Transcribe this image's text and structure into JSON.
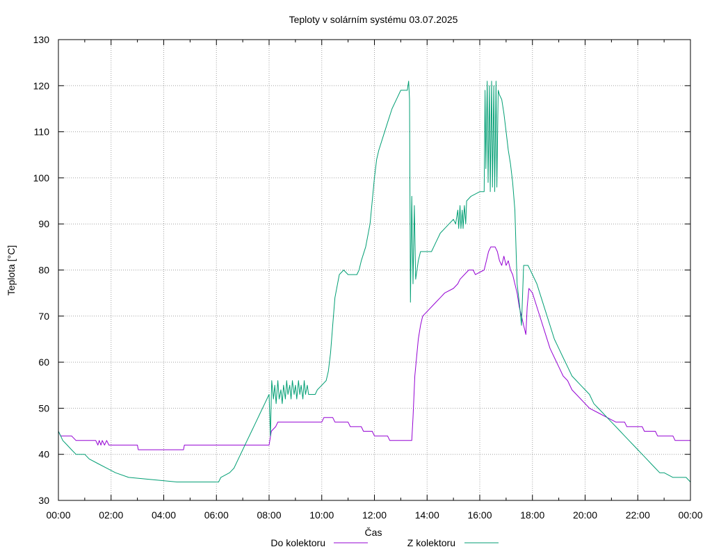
{
  "chart_data": {
    "type": "line",
    "title": "Teploty v solárním systému 03.07.2025",
    "xlabel": "Čas",
    "ylabel": "Teplota [°C]",
    "xlim": [
      "00:00",
      "24:00"
    ],
    "ylim": [
      30,
      130
    ],
    "x_ticks": [
      "00:00",
      "02:00",
      "04:00",
      "06:00",
      "08:00",
      "10:00",
      "12:00",
      "14:00",
      "16:00",
      "18:00",
      "20:00",
      "22:00",
      "00:00"
    ],
    "y_ticks": [
      30,
      40,
      50,
      60,
      70,
      80,
      90,
      100,
      110,
      120,
      130
    ],
    "grid": true,
    "legend_position": "bottom",
    "series": [
      {
        "name": "Do kolektoru",
        "color": "#9400d3",
        "points": [
          [
            "00:00",
            45
          ],
          [
            "00:05",
            44
          ],
          [
            "00:30",
            44
          ],
          [
            "00:40",
            43
          ],
          [
            "01:25",
            43
          ],
          [
            "01:30",
            42
          ],
          [
            "01:33",
            43
          ],
          [
            "01:37",
            42
          ],
          [
            "01:40",
            43
          ],
          [
            "01:45",
            42
          ],
          [
            "01:50",
            43
          ],
          [
            "01:55",
            42
          ],
          [
            "03:00",
            42
          ],
          [
            "03:02",
            41
          ],
          [
            "04:45",
            41
          ],
          [
            "04:47",
            42
          ],
          [
            "08:00",
            42
          ],
          [
            "08:05",
            45
          ],
          [
            "08:15",
            46
          ],
          [
            "08:20",
            47
          ],
          [
            "10:00",
            47
          ],
          [
            "10:05",
            48
          ],
          [
            "10:25",
            48
          ],
          [
            "10:30",
            47
          ],
          [
            "11:00",
            47
          ],
          [
            "11:05",
            46
          ],
          [
            "11:30",
            46
          ],
          [
            "11:35",
            45
          ],
          [
            "11:55",
            45
          ],
          [
            "12:00",
            44
          ],
          [
            "12:30",
            44
          ],
          [
            "12:35",
            43
          ],
          [
            "13:25",
            43
          ],
          [
            "13:28",
            48
          ],
          [
            "13:32",
            57
          ],
          [
            "13:36",
            61
          ],
          [
            "13:40",
            65
          ],
          [
            "13:45",
            68
          ],
          [
            "13:50",
            70
          ],
          [
            "14:00",
            71
          ],
          [
            "14:10",
            72
          ],
          [
            "14:20",
            73
          ],
          [
            "14:30",
            74
          ],
          [
            "14:40",
            75
          ],
          [
            "15:00",
            76
          ],
          [
            "15:10",
            77
          ],
          [
            "15:15",
            78
          ],
          [
            "15:25",
            79
          ],
          [
            "15:35",
            80
          ],
          [
            "15:45",
            80
          ],
          [
            "15:50",
            79
          ],
          [
            "16:10",
            80
          ],
          [
            "16:15",
            82
          ],
          [
            "16:20",
            84
          ],
          [
            "16:25",
            85
          ],
          [
            "16:35",
            85
          ],
          [
            "16:40",
            84
          ],
          [
            "16:45",
            82
          ],
          [
            "16:50",
            81
          ],
          [
            "16:55",
            83
          ],
          [
            "17:00",
            81
          ],
          [
            "17:05",
            82
          ],
          [
            "17:10",
            80
          ],
          [
            "17:15",
            79
          ],
          [
            "17:20",
            77
          ],
          [
            "17:25",
            75
          ],
          [
            "17:30",
            72
          ],
          [
            "17:35",
            70
          ],
          [
            "17:40",
            68
          ],
          [
            "17:45",
            66
          ],
          [
            "17:48",
            72
          ],
          [
            "17:52",
            76
          ],
          [
            "18:00",
            75
          ],
          [
            "18:10",
            72
          ],
          [
            "18:20",
            69
          ],
          [
            "18:30",
            66
          ],
          [
            "18:40",
            63
          ],
          [
            "18:50",
            61
          ],
          [
            "19:00",
            59
          ],
          [
            "19:10",
            57
          ],
          [
            "19:20",
            56
          ],
          [
            "19:30",
            54
          ],
          [
            "19:40",
            53
          ],
          [
            "19:50",
            52
          ],
          [
            "20:00",
            51
          ],
          [
            "20:10",
            50
          ],
          [
            "20:30",
            49
          ],
          [
            "20:50",
            48
          ],
          [
            "21:10",
            47
          ],
          [
            "21:30",
            47
          ],
          [
            "21:35",
            46
          ],
          [
            "22:10",
            46
          ],
          [
            "22:15",
            45
          ],
          [
            "22:40",
            45
          ],
          [
            "22:45",
            44
          ],
          [
            "23:20",
            44
          ],
          [
            "23:25",
            43
          ],
          [
            "24:00",
            43
          ]
        ]
      },
      {
        "name": "Z kolektoru",
        "color": "#009e73",
        "points": [
          [
            "00:00",
            45
          ],
          [
            "00:05",
            44
          ],
          [
            "00:10",
            43
          ],
          [
            "00:20",
            42
          ],
          [
            "00:30",
            41
          ],
          [
            "00:40",
            40
          ],
          [
            "01:00",
            40
          ],
          [
            "01:10",
            39
          ],
          [
            "01:30",
            38
          ],
          [
            "01:50",
            37
          ],
          [
            "02:10",
            36
          ],
          [
            "02:40",
            35
          ],
          [
            "04:30",
            34
          ],
          [
            "06:05",
            34
          ],
          [
            "06:10",
            35
          ],
          [
            "06:30",
            36
          ],
          [
            "06:40",
            37
          ],
          [
            "06:50",
            39
          ],
          [
            "07:00",
            41
          ],
          [
            "07:10",
            43
          ],
          [
            "07:20",
            45
          ],
          [
            "07:30",
            47
          ],
          [
            "07:40",
            49
          ],
          [
            "07:50",
            51
          ],
          [
            "08:00",
            53
          ],
          [
            "08:03",
            44
          ],
          [
            "08:06",
            56
          ],
          [
            "08:10",
            52
          ],
          [
            "08:13",
            55
          ],
          [
            "08:16",
            51
          ],
          [
            "08:20",
            56
          ],
          [
            "08:23",
            52
          ],
          [
            "08:27",
            54
          ],
          [
            "08:30",
            51
          ],
          [
            "08:33",
            55
          ],
          [
            "08:37",
            52
          ],
          [
            "08:40",
            56
          ],
          [
            "08:43",
            53
          ],
          [
            "08:47",
            55
          ],
          [
            "08:50",
            52
          ],
          [
            "08:53",
            56
          ],
          [
            "08:57",
            53
          ],
          [
            "09:00",
            55
          ],
          [
            "09:03",
            52
          ],
          [
            "09:07",
            56
          ],
          [
            "09:10",
            53
          ],
          [
            "09:13",
            55
          ],
          [
            "09:17",
            52
          ],
          [
            "09:20",
            56
          ],
          [
            "09:23",
            53
          ],
          [
            "09:27",
            55
          ],
          [
            "09:30",
            53
          ],
          [
            "09:45",
            53
          ],
          [
            "09:50",
            54
          ],
          [
            "10:00",
            55
          ],
          [
            "10:10",
            56
          ],
          [
            "10:15",
            58
          ],
          [
            "10:20",
            62
          ],
          [
            "10:25",
            68
          ],
          [
            "10:30",
            74
          ],
          [
            "10:40",
            79
          ],
          [
            "10:50",
            80
          ],
          [
            "11:00",
            79
          ],
          [
            "11:20",
            79
          ],
          [
            "11:25",
            80
          ],
          [
            "11:30",
            82
          ],
          [
            "11:40",
            85
          ],
          [
            "11:50",
            90
          ],
          [
            "12:00",
            100
          ],
          [
            "12:05",
            104
          ],
          [
            "12:10",
            106
          ],
          [
            "12:20",
            109
          ],
          [
            "12:30",
            112
          ],
          [
            "12:40",
            115
          ],
          [
            "12:50",
            117
          ],
          [
            "13:00",
            119
          ],
          [
            "13:15",
            119
          ],
          [
            "13:18",
            121
          ],
          [
            "13:20",
            117
          ],
          [
            "13:22",
            73
          ],
          [
            "13:25",
            96
          ],
          [
            "13:28",
            77
          ],
          [
            "13:31",
            94
          ],
          [
            "13:34",
            78
          ],
          [
            "13:40",
            82
          ],
          [
            "13:45",
            84
          ],
          [
            "14:00",
            84
          ],
          [
            "14:10",
            84
          ],
          [
            "14:20",
            86
          ],
          [
            "14:30",
            88
          ],
          [
            "14:40",
            89
          ],
          [
            "14:50",
            90
          ],
          [
            "15:00",
            91
          ],
          [
            "15:05",
            90
          ],
          [
            "15:10",
            93
          ],
          [
            "15:12",
            89
          ],
          [
            "15:15",
            94
          ],
          [
            "15:17",
            89
          ],
          [
            "15:20",
            93
          ],
          [
            "15:22",
            89
          ],
          [
            "15:25",
            94
          ],
          [
            "15:28",
            90
          ],
          [
            "15:30",
            95
          ],
          [
            "15:40",
            96
          ],
          [
            "16:00",
            97
          ],
          [
            "16:10",
            97
          ],
          [
            "16:12",
            119
          ],
          [
            "16:14",
            102
          ],
          [
            "16:17",
            121
          ],
          [
            "16:19",
            99
          ],
          [
            "16:22",
            120
          ],
          [
            "16:24",
            97
          ],
          [
            "16:27",
            121
          ],
          [
            "16:29",
            98
          ],
          [
            "16:32",
            120
          ],
          [
            "16:34",
            97
          ],
          [
            "16:37",
            121
          ],
          [
            "16:39",
            98
          ],
          [
            "16:42",
            119
          ],
          [
            "16:45",
            118
          ],
          [
            "16:50",
            117
          ],
          [
            "16:55",
            114
          ],
          [
            "17:00",
            110
          ],
          [
            "17:05",
            106
          ],
          [
            "17:10",
            103
          ],
          [
            "17:15",
            99
          ],
          [
            "17:20",
            93
          ],
          [
            "17:25",
            77
          ],
          [
            "17:30",
            73
          ],
          [
            "17:35",
            68
          ],
          [
            "17:38",
            76
          ],
          [
            "17:40",
            81
          ],
          [
            "17:50",
            81
          ],
          [
            "18:00",
            79
          ],
          [
            "18:10",
            77
          ],
          [
            "18:20",
            74
          ],
          [
            "18:30",
            71
          ],
          [
            "18:40",
            68
          ],
          [
            "18:50",
            65
          ],
          [
            "19:00",
            63
          ],
          [
            "19:10",
            61
          ],
          [
            "19:20",
            59
          ],
          [
            "19:30",
            57
          ],
          [
            "19:40",
            56
          ],
          [
            "19:50",
            55
          ],
          [
            "20:00",
            54
          ],
          [
            "20:10",
            53
          ],
          [
            "20:20",
            51
          ],
          [
            "20:30",
            50
          ],
          [
            "20:40",
            49
          ],
          [
            "20:50",
            48
          ],
          [
            "21:00",
            47
          ],
          [
            "21:10",
            46
          ],
          [
            "21:20",
            45
          ],
          [
            "21:30",
            44
          ],
          [
            "21:40",
            43
          ],
          [
            "21:50",
            42
          ],
          [
            "22:00",
            41
          ],
          [
            "22:10",
            40
          ],
          [
            "22:20",
            39
          ],
          [
            "22:30",
            38
          ],
          [
            "22:40",
            37
          ],
          [
            "22:50",
            36
          ],
          [
            "23:00",
            36
          ],
          [
            "23:20",
            35
          ],
          [
            "23:50",
            35
          ],
          [
            "24:00",
            34
          ]
        ]
      }
    ]
  }
}
